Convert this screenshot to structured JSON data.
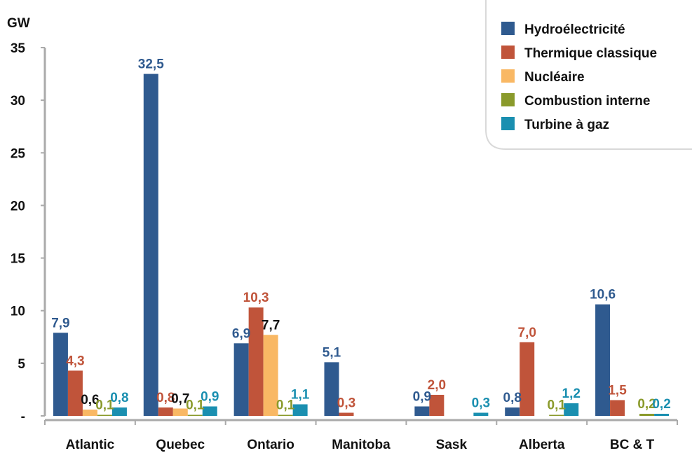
{
  "chart_data": {
    "type": "bar",
    "unit_label": "GW",
    "categories": [
      "Atlantic",
      "Quebec",
      "Ontario",
      "Manitoba",
      "Sask",
      "Alberta",
      "BC & T"
    ],
    "y_ticks": [
      "-",
      "5",
      "10",
      "15",
      "20",
      "25",
      "30",
      "35"
    ],
    "y_tick_values": [
      0,
      5,
      10,
      15,
      20,
      25,
      30,
      35
    ],
    "ylim": [
      0,
      35
    ],
    "grid": false,
    "legend_position": "top-right",
    "series": [
      {
        "name": "Hydroélectricité",
        "color": "#2f5a8f",
        "values": [
          7.9,
          32.5,
          6.9,
          5.1,
          0.9,
          0.8,
          10.6
        ],
        "labels": [
          "7,9",
          "32,5",
          "6,9",
          "5,1",
          "0,9",
          "0,8",
          "10,6"
        ]
      },
      {
        "name": "Thermique classique",
        "color": "#c0543a",
        "values": [
          4.3,
          0.8,
          10.3,
          0.3,
          2.0,
          7.0,
          1.5
        ],
        "labels": [
          "4,3",
          "0,8",
          "10,3",
          "0,3",
          "2,0",
          "7,0",
          "1,5"
        ]
      },
      {
        "name": "Nucléaire",
        "color": "#f9b864",
        "values": [
          0.6,
          0.7,
          7.7,
          0,
          0,
          0,
          0
        ],
        "labels": [
          "0,6",
          "0,7",
          "7,7",
          "",
          "",
          "",
          ""
        ],
        "label_color": "#111111"
      },
      {
        "name": "Combustion interne",
        "color": "#8a9a2b",
        "values": [
          0.1,
          0.1,
          0.1,
          0,
          0,
          0.1,
          0.2
        ],
        "labels": [
          "0,1",
          "0,1",
          "0,1",
          "",
          "",
          "0,1",
          "0,2"
        ]
      },
      {
        "name": "Turbine à gaz",
        "color": "#1a8fb0",
        "values": [
          0.8,
          0.9,
          1.1,
          0,
          0.3,
          1.2,
          0.2
        ],
        "labels": [
          "0,8",
          "0,9",
          "1,1",
          "",
          "0,3",
          "1,2",
          "0,2"
        ]
      }
    ]
  }
}
